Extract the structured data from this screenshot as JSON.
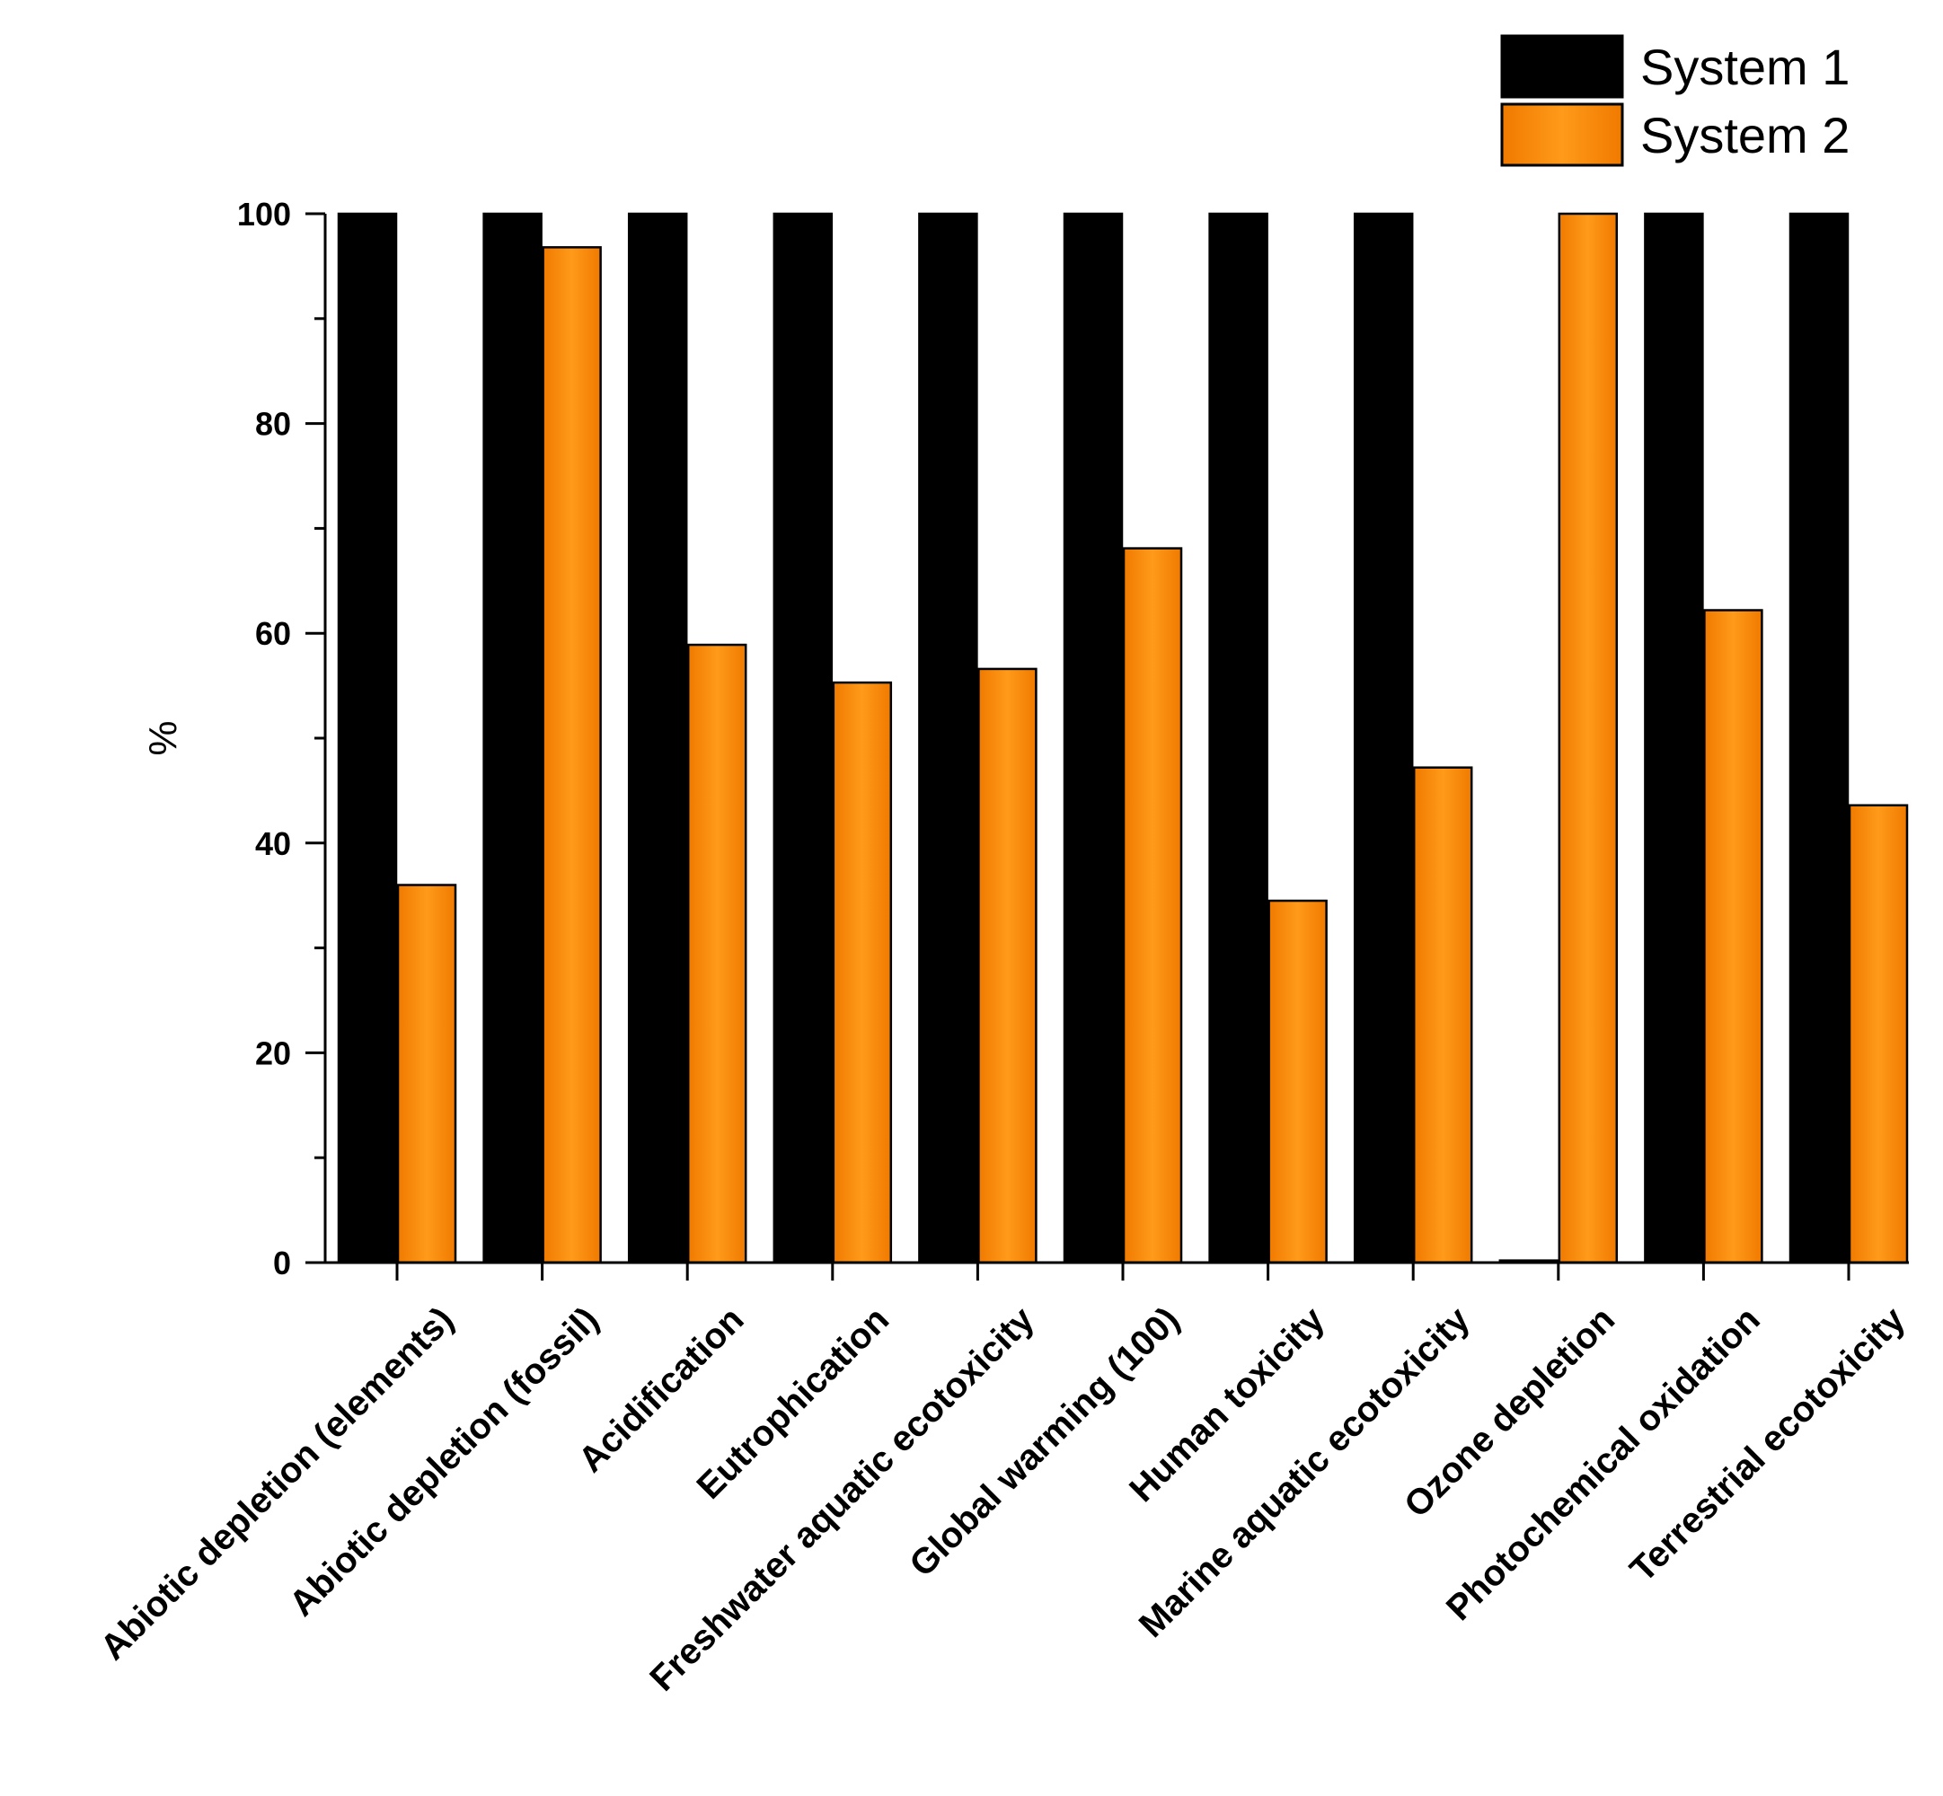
{
  "chart_data": {
    "type": "bar",
    "title": "",
    "xlabel": "",
    "ylabel": "%",
    "ylim": [
      0,
      100
    ],
    "yticks": [
      0,
      20,
      40,
      60,
      80,
      100
    ],
    "grid": false,
    "legend_position": "top-right",
    "categories": [
      "Abiotic depletion (elements)",
      "Abiotic depletion (fossil)",
      "Acidification",
      "Eutrophication",
      "Freshwater aquatic ecotoxicity",
      "Global warming (100)",
      "Human toxicity",
      "Marine aquatic ecotoxicity",
      "Ozone depletion",
      "Photochemical oxidation",
      "Terrestrial ecotoxicity"
    ],
    "series": [
      {
        "name": "System 1",
        "color": "#000000",
        "values": [
          100,
          100,
          100,
          100,
          100,
          100,
          100,
          100,
          0.2,
          100,
          100
        ]
      },
      {
        "name": "System 2",
        "color": "#ff8c00",
        "values": [
          36,
          96.8,
          58.9,
          55.3,
          56.6,
          68.1,
          34.5,
          47.2,
          100,
          62.2,
          43.6
        ]
      }
    ]
  }
}
